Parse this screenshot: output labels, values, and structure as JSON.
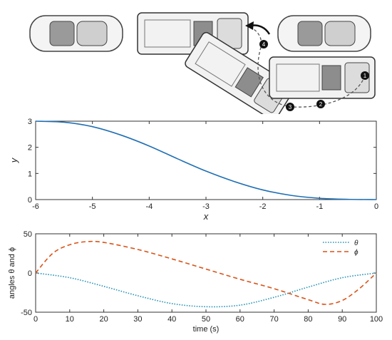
{
  "illustration": {
    "description_icons": [
      "parked-car-icon",
      "van-icon",
      "arrow-icon"
    ],
    "step_markers": [
      "1",
      "2",
      "3",
      "4"
    ]
  },
  "chart_data": [
    {
      "type": "line",
      "xlabel": "x",
      "ylabel": "y",
      "xlim": [
        -6,
        0
      ],
      "ylim": [
        0,
        3
      ],
      "xticks": [
        "-6",
        "-5",
        "-4",
        "-3",
        "-2",
        "-1",
        "0"
      ],
      "yticks": [
        "0",
        "1",
        "2",
        "3"
      ],
      "grid": false,
      "series": [
        {
          "color": "#1f6fb4",
          "x": [
            -6,
            -5.5,
            -5,
            -4.5,
            -4,
            -3.5,
            -3,
            -2.5,
            -2,
            -1.5,
            -1,
            -0.5,
            0
          ],
          "y": [
            3.0,
            2.96,
            2.79,
            2.47,
            2.05,
            1.56,
            1.09,
            0.69,
            0.37,
            0.16,
            0.05,
            0.01,
            0.0
          ]
        }
      ]
    },
    {
      "type": "line",
      "xlabel": "time (s)",
      "ylabel": "angles θ and ϕ",
      "xlim": [
        0,
        100
      ],
      "ylim": [
        -50,
        50
      ],
      "xticks": [
        "0",
        "10",
        "20",
        "30",
        "40",
        "50",
        "60",
        "70",
        "80",
        "90",
        "100"
      ],
      "yticks": [
        "-50",
        "0",
        "50"
      ],
      "legend_position": "top-right",
      "grid": false,
      "series": [
        {
          "name": "θ",
          "style": "dotted",
          "color": "#1f8fb4",
          "x": [
            0,
            10,
            20,
            30,
            40,
            50,
            60,
            70,
            80,
            90,
            100
          ],
          "y": [
            0,
            -6,
            -17,
            -29,
            -39,
            -43,
            -41,
            -31,
            -18,
            -6,
            0
          ]
        },
        {
          "name": "ϕ",
          "style": "dashed",
          "color": "#d95319",
          "x": [
            0,
            5,
            10,
            15,
            20,
            30,
            40,
            50,
            60,
            70,
            80,
            85,
            90,
            95,
            100
          ],
          "y": [
            0,
            25,
            36,
            40,
            39,
            30,
            18,
            5,
            -8,
            -20,
            -34,
            -40,
            -35,
            -20,
            0
          ]
        }
      ]
    }
  ]
}
